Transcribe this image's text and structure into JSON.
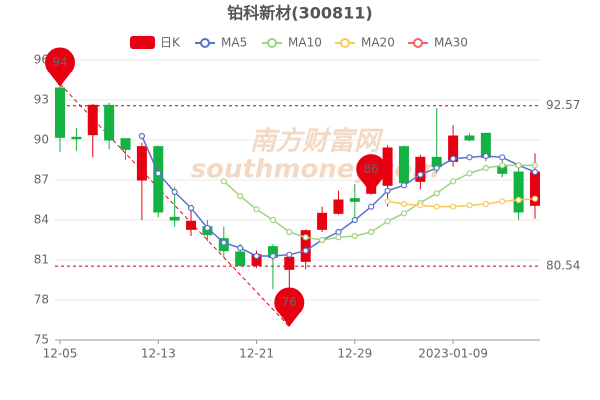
{
  "chart_data": {
    "type": "candlestick",
    "title": "铂科新材(300811)",
    "watermark": [
      "南方财富网",
      "southmoney.com"
    ],
    "candle_name": "日K",
    "up_color": "#e60012",
    "down_color": "#14b143",
    "categories": [
      "12-05",
      null,
      null,
      null,
      null,
      null,
      "12-13",
      null,
      null,
      null,
      null,
      null,
      "12-21",
      null,
      null,
      null,
      null,
      null,
      "12-29",
      null,
      null,
      null,
      null,
      null,
      "2023-01-09",
      null,
      null,
      null,
      null,
      null
    ],
    "open": [
      93.9,
      90.2,
      90.4,
      92.6,
      90.1,
      87.0,
      89.5,
      84.2,
      83.3,
      83.5,
      82.6,
      81.6,
      80.6,
      82.0,
      80.3,
      80.9,
      83.3,
      84.5,
      85.6,
      86.0,
      86.6,
      89.5,
      86.9,
      88.7,
      88.4,
      90.3,
      90.5,
      88.0,
      87.6,
      85.1
    ],
    "high": [
      94.2,
      90.9,
      92.7,
      92.8,
      90.1,
      89.8,
      89.6,
      86.5,
      84.7,
      84.0,
      83.5,
      82.2,
      81.7,
      82.2,
      81.6,
      83.3,
      85.0,
      86.2,
      86.7,
      87.2,
      89.6,
      89.6,
      88.9,
      92.4,
      91.1,
      90.5,
      90.5,
      88.7,
      88.0,
      89.0
    ],
    "low": [
      89.1,
      89.2,
      88.7,
      89.3,
      88.5,
      84.0,
      84.2,
      83.5,
      82.8,
      82.4,
      81.2,
      80.5,
      80.4,
      78.8,
      76.0,
      80.3,
      83.1,
      84.4,
      84.0,
      85.9,
      85.0,
      86.4,
      86.3,
      87.5,
      88.0,
      89.9,
      88.4,
      87.2,
      84.0,
      84.1
    ],
    "close": [
      90.2,
      90.1,
      92.6,
      90.0,
      89.3,
      89.5,
      84.6,
      84.0,
      83.9,
      82.9,
      81.7,
      80.6,
      81.4,
      81.2,
      81.2,
      83.2,
      84.5,
      85.5,
      85.4,
      86.5,
      89.4,
      86.8,
      88.7,
      88.0,
      90.3,
      90.0,
      88.7,
      87.5,
      84.6,
      87.6
    ],
    "lines": [
      {
        "name": "MA5",
        "color": "#5b73c7",
        "values": [
          null,
          null,
          null,
          null,
          null,
          90.3,
          87.5,
          86.1,
          84.9,
          83.4,
          82.3,
          81.9,
          81.3,
          81.3,
          81.4,
          81.7,
          82.5,
          83.1,
          84.0,
          85.0,
          86.2,
          86.6,
          87.4,
          87.9,
          88.6,
          88.7,
          88.8,
          88.7,
          88.1,
          87.6
        ]
      },
      {
        "name": "MA10",
        "color": "#9fd37f",
        "values": [
          null,
          null,
          null,
          null,
          null,
          null,
          null,
          null,
          null,
          null,
          86.9,
          85.8,
          84.8,
          84.0,
          83.1,
          82.7,
          82.5,
          82.7,
          82.8,
          83.1,
          83.9,
          84.5,
          85.3,
          86.0,
          86.9,
          87.5,
          87.9,
          88.1,
          88.1,
          88.1
        ]
      },
      {
        "name": "MA20",
        "color": "#fac858",
        "values": [
          null,
          null,
          null,
          null,
          null,
          null,
          null,
          null,
          null,
          null,
          null,
          null,
          null,
          null,
          null,
          null,
          null,
          null,
          null,
          null,
          85.4,
          85.2,
          85.1,
          85.0,
          85.0,
          85.1,
          85.2,
          85.4,
          85.5,
          85.6
        ]
      },
      {
        "name": "MA30",
        "color": "#ee6666",
        "values": [
          null,
          null,
          null,
          null,
          null,
          null,
          null,
          null,
          null,
          null,
          null,
          null,
          null,
          null,
          null,
          null,
          null,
          null,
          null,
          null,
          null,
          null,
          null,
          null,
          null,
          null,
          null,
          null,
          null,
          null
        ]
      }
    ],
    "hlines": [
      92.57,
      80.54
    ],
    "annotations": [
      {
        "index": 0,
        "value": 94
      },
      {
        "index": 19,
        "value": 86
      },
      {
        "index": 14,
        "value": 76
      }
    ],
    "ylim": [
      75,
      96
    ],
    "yticks": [
      75,
      78,
      81,
      84,
      87,
      90,
      93,
      96
    ],
    "grid": true
  }
}
